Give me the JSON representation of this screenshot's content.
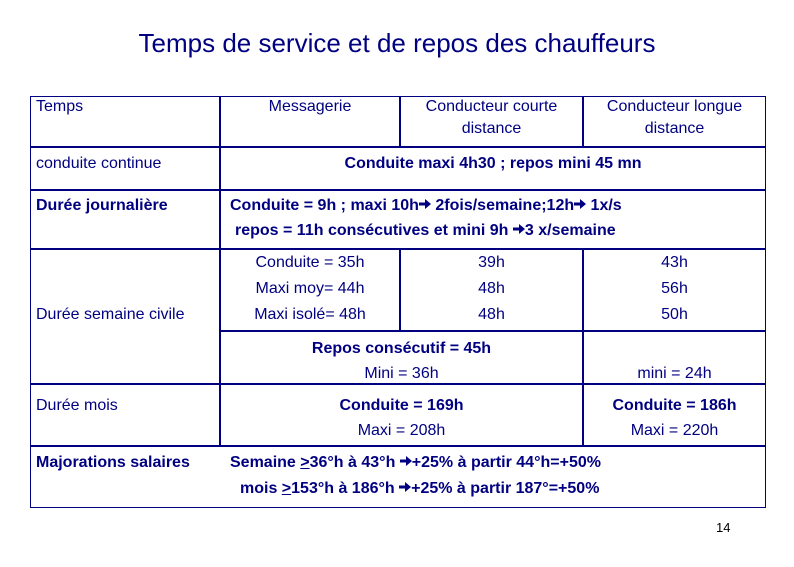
{
  "title": "Temps de service et de repos des chauffeurs",
  "header": {
    "col0": "Temps",
    "col1": "Messagerie",
    "col2": [
      "Conducteur courte",
      "distance"
    ],
    "col3": [
      "Conducteur longue",
      "distance"
    ]
  },
  "rows": {
    "conduite_continue": {
      "label": "conduite continue",
      "value": "Conduite maxi 4h30 ;  repos mini 45 mn"
    },
    "duree_journaliere": {
      "label": "Durée journalière",
      "line1": {
        "a": "Conduite = 9h ; maxi 10h",
        "b": " 2fois/semaine;12h",
        "c": " 1x/s"
      },
      "line2": {
        "a": "repos = 11h consécutives et mini 9h ",
        "b": "3 x/semaine"
      }
    },
    "duree_semaine": {
      "label": "Durée semaine civile",
      "messagerie": [
        "Conduite = 35h",
        "Maxi moy= 44h",
        "Maxi isolé= 48h"
      ],
      "courte": [
        "39h",
        "48h",
        "48h"
      ],
      "longue": [
        "43h",
        "56h",
        "50h"
      ]
    },
    "repos": {
      "left": [
        "Repos consécutif = 45h",
        "Mini = 36h"
      ],
      "right": "mini = 24h"
    },
    "duree_mois": {
      "label": "Durée mois",
      "left": [
        "Conduite = 169h",
        "Maxi = 208h"
      ],
      "right": [
        "Conduite = 186h",
        "Maxi = 220h"
      ]
    },
    "majorations": {
      "label": "Majorations  salaires",
      "line1": {
        "pre": "Semaine ",
        "u": ">",
        "a": "36°h à 43°h ",
        "b": "+25%  à partir 44°h=+50%"
      },
      "line2": {
        "pre": "mois ",
        "u": ">",
        "a": "153°h à 186°h ",
        "b": "+25%  à partir 187°=+50%"
      }
    }
  },
  "arrow_icon": "arrow-right-icon",
  "page_number": "14"
}
